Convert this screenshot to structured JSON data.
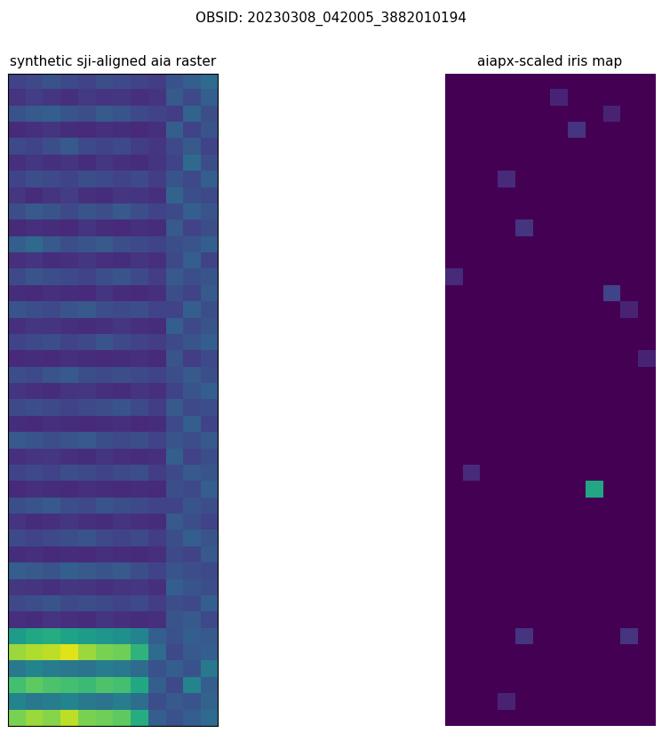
{
  "title": "OBSID: 20230308_042005_3882010194",
  "chart_data": [
    {
      "type": "heatmap",
      "title": "synthetic sji-aligned aia raster",
      "color": "viridis",
      "color_range": [
        0,
        1
      ],
      "tick_labels": false,
      "cells": [
        [
          0.2,
          0.22,
          0.25,
          0.22,
          0.2,
          0.24,
          0.22,
          0.2,
          0.18,
          0.25,
          0.3,
          0.35
        ],
        [
          0.15,
          0.18,
          0.16,
          0.14,
          0.17,
          0.15,
          0.16,
          0.14,
          0.15,
          0.28,
          0.22,
          0.3
        ],
        [
          0.25,
          0.28,
          0.3,
          0.26,
          0.24,
          0.28,
          0.26,
          0.22,
          0.2,
          0.18,
          0.32,
          0.24
        ],
        [
          0.12,
          0.14,
          0.15,
          0.13,
          0.12,
          0.14,
          0.13,
          0.12,
          0.14,
          0.3,
          0.2,
          0.26
        ],
        [
          0.22,
          0.2,
          0.24,
          0.28,
          0.22,
          0.2,
          0.22,
          0.18,
          0.16,
          0.22,
          0.28,
          0.2
        ],
        [
          0.14,
          0.16,
          0.14,
          0.15,
          0.13,
          0.16,
          0.14,
          0.13,
          0.15,
          0.2,
          0.34,
          0.24
        ],
        [
          0.2,
          0.24,
          0.22,
          0.2,
          0.24,
          0.22,
          0.2,
          0.22,
          0.18,
          0.26,
          0.22,
          0.3
        ],
        [
          0.16,
          0.13,
          0.15,
          0.18,
          0.14,
          0.13,
          0.16,
          0.15,
          0.14,
          0.32,
          0.24,
          0.22
        ],
        [
          0.24,
          0.28,
          0.26,
          0.22,
          0.26,
          0.24,
          0.28,
          0.24,
          0.2,
          0.22,
          0.3,
          0.26
        ],
        [
          0.12,
          0.14,
          0.13,
          0.12,
          0.15,
          0.13,
          0.12,
          0.14,
          0.13,
          0.28,
          0.2,
          0.24
        ],
        [
          0.3,
          0.34,
          0.28,
          0.24,
          0.26,
          0.28,
          0.24,
          0.22,
          0.2,
          0.24,
          0.26,
          0.3
        ],
        [
          0.14,
          0.15,
          0.13,
          0.14,
          0.16,
          0.14,
          0.13,
          0.15,
          0.14,
          0.22,
          0.3,
          0.2
        ],
        [
          0.22,
          0.26,
          0.24,
          0.22,
          0.2,
          0.24,
          0.26,
          0.22,
          0.18,
          0.28,
          0.24,
          0.26
        ],
        [
          0.13,
          0.12,
          0.14,
          0.13,
          0.12,
          0.15,
          0.13,
          0.12,
          0.14,
          0.24,
          0.2,
          0.28
        ],
        [
          0.26,
          0.24,
          0.22,
          0.26,
          0.28,
          0.24,
          0.22,
          0.24,
          0.2,
          0.2,
          0.3,
          0.24
        ],
        [
          0.14,
          0.16,
          0.15,
          0.14,
          0.13,
          0.14,
          0.16,
          0.14,
          0.13,
          0.3,
          0.22,
          0.26
        ],
        [
          0.2,
          0.22,
          0.24,
          0.2,
          0.22,
          0.26,
          0.22,
          0.2,
          0.18,
          0.22,
          0.26,
          0.3
        ],
        [
          0.12,
          0.13,
          0.12,
          0.14,
          0.13,
          0.12,
          0.13,
          0.14,
          0.12,
          0.26,
          0.18,
          0.22
        ],
        [
          0.24,
          0.22,
          0.26,
          0.28,
          0.24,
          0.22,
          0.24,
          0.22,
          0.2,
          0.24,
          0.28,
          0.24
        ],
        [
          0.15,
          0.14,
          0.13,
          0.15,
          0.16,
          0.14,
          0.13,
          0.15,
          0.14,
          0.2,
          0.26,
          0.3
        ],
        [
          0.22,
          0.24,
          0.22,
          0.2,
          0.22,
          0.24,
          0.26,
          0.22,
          0.18,
          0.28,
          0.22,
          0.24
        ],
        [
          0.13,
          0.12,
          0.14,
          0.13,
          0.12,
          0.13,
          0.14,
          0.12,
          0.13,
          0.22,
          0.3,
          0.2
        ],
        [
          0.28,
          0.26,
          0.24,
          0.26,
          0.28,
          0.24,
          0.22,
          0.24,
          0.2,
          0.26,
          0.24,
          0.28
        ],
        [
          0.14,
          0.15,
          0.16,
          0.14,
          0.13,
          0.15,
          0.14,
          0.13,
          0.14,
          0.3,
          0.2,
          0.24
        ],
        [
          0.2,
          0.22,
          0.2,
          0.24,
          0.22,
          0.2,
          0.22,
          0.24,
          0.18,
          0.22,
          0.28,
          0.26
        ],
        [
          0.12,
          0.14,
          0.13,
          0.12,
          0.14,
          0.13,
          0.12,
          0.13,
          0.12,
          0.24,
          0.22,
          0.3
        ],
        [
          0.24,
          0.26,
          0.28,
          0.24,
          0.22,
          0.26,
          0.24,
          0.22,
          0.2,
          0.2,
          0.26,
          0.24
        ],
        [
          0.15,
          0.13,
          0.14,
          0.16,
          0.14,
          0.13,
          0.15,
          0.14,
          0.13,
          0.28,
          0.24,
          0.2
        ],
        [
          0.22,
          0.2,
          0.22,
          0.24,
          0.26,
          0.22,
          0.2,
          0.22,
          0.18,
          0.24,
          0.3,
          0.26
        ],
        [
          0.13,
          0.14,
          0.12,
          0.13,
          0.12,
          0.14,
          0.13,
          0.12,
          0.14,
          0.22,
          0.2,
          0.28
        ],
        [
          0.3,
          0.28,
          0.26,
          0.3,
          0.28,
          0.26,
          0.28,
          0.24,
          0.2,
          0.26,
          0.24,
          0.22
        ],
        [
          0.16,
          0.15,
          0.14,
          0.16,
          0.15,
          0.14,
          0.15,
          0.16,
          0.14,
          0.3,
          0.26,
          0.24
        ],
        [
          0.22,
          0.24,
          0.26,
          0.22,
          0.24,
          0.22,
          0.2,
          0.22,
          0.18,
          0.24,
          0.22,
          0.3
        ],
        [
          0.14,
          0.13,
          0.15,
          0.14,
          0.13,
          0.15,
          0.14,
          0.13,
          0.14,
          0.26,
          0.28,
          0.22
        ],
        [
          0.55,
          0.6,
          0.62,
          0.58,
          0.55,
          0.52,
          0.5,
          0.45,
          0.3,
          0.25,
          0.3,
          0.28
        ],
        [
          0.85,
          0.88,
          0.9,
          0.95,
          0.85,
          0.8,
          0.78,
          0.65,
          0.35,
          0.22,
          0.28,
          0.3
        ],
        [
          0.4,
          0.45,
          0.42,
          0.4,
          0.38,
          0.42,
          0.4,
          0.35,
          0.25,
          0.3,
          0.25,
          0.4
        ],
        [
          0.7,
          0.75,
          0.72,
          0.7,
          0.68,
          0.72,
          0.7,
          0.6,
          0.3,
          0.22,
          0.45,
          0.3
        ],
        [
          0.45,
          0.4,
          0.42,
          0.45,
          0.4,
          0.38,
          0.42,
          0.36,
          0.24,
          0.28,
          0.26,
          0.32
        ],
        [
          0.8,
          0.85,
          0.82,
          0.9,
          0.8,
          0.78,
          0.75,
          0.62,
          0.3,
          0.25,
          0.3,
          0.35
        ]
      ]
    },
    {
      "type": "heatmap",
      "title": "aiapx-scaled iris map",
      "color": "viridis",
      "color_range": [
        0,
        1
      ],
      "tick_labels": false,
      "cells": [
        [
          0,
          0,
          0,
          0,
          0,
          0,
          0,
          0,
          0,
          0,
          0,
          0
        ],
        [
          0,
          0,
          0,
          0,
          0,
          0,
          0.1,
          0,
          0,
          0,
          0,
          0
        ],
        [
          0,
          0,
          0,
          0,
          0,
          0,
          0,
          0,
          0,
          0.1,
          0,
          0
        ],
        [
          0,
          0,
          0,
          0,
          0,
          0,
          0,
          0.15,
          0,
          0,
          0,
          0
        ],
        [
          0,
          0,
          0,
          0,
          0,
          0,
          0,
          0,
          0,
          0,
          0,
          0
        ],
        [
          0,
          0,
          0,
          0,
          0,
          0,
          0,
          0,
          0,
          0,
          0,
          0
        ],
        [
          0,
          0,
          0,
          0.12,
          0,
          0,
          0,
          0,
          0,
          0,
          0,
          0
        ],
        [
          0,
          0,
          0,
          0,
          0,
          0,
          0,
          0,
          0,
          0,
          0,
          0
        ],
        [
          0,
          0,
          0,
          0,
          0,
          0,
          0,
          0,
          0,
          0,
          0,
          0
        ],
        [
          0,
          0,
          0,
          0,
          0.15,
          0,
          0,
          0,
          0,
          0,
          0,
          0
        ],
        [
          0,
          0,
          0,
          0,
          0,
          0,
          0,
          0,
          0,
          0,
          0,
          0
        ],
        [
          0,
          0,
          0,
          0,
          0,
          0,
          0,
          0,
          0,
          0,
          0,
          0
        ],
        [
          0.12,
          0,
          0,
          0,
          0,
          0,
          0,
          0,
          0,
          0,
          0,
          0
        ],
        [
          0,
          0,
          0,
          0,
          0,
          0,
          0,
          0,
          0,
          0.2,
          0,
          0
        ],
        [
          0,
          0,
          0,
          0,
          0,
          0,
          0,
          0,
          0,
          0,
          0.1,
          0
        ],
        [
          0,
          0,
          0,
          0,
          0,
          0,
          0,
          0,
          0,
          0,
          0,
          0
        ],
        [
          0,
          0,
          0,
          0,
          0,
          0,
          0,
          0,
          0,
          0,
          0,
          0
        ],
        [
          0,
          0,
          0,
          0,
          0,
          0,
          0,
          0,
          0,
          0,
          0,
          0.1
        ],
        [
          0,
          0,
          0,
          0,
          0,
          0,
          0,
          0,
          0,
          0,
          0,
          0
        ],
        [
          0,
          0,
          0,
          0,
          0,
          0,
          0,
          0,
          0,
          0,
          0,
          0
        ],
        [
          0,
          0,
          0,
          0,
          0,
          0,
          0,
          0,
          0,
          0,
          0,
          0
        ],
        [
          0,
          0,
          0,
          0,
          0,
          0,
          0,
          0,
          0,
          0,
          0,
          0
        ],
        [
          0,
          0,
          0,
          0,
          0,
          0,
          0,
          0,
          0,
          0,
          0,
          0
        ],
        [
          0,
          0,
          0,
          0,
          0,
          0,
          0,
          0,
          0,
          0,
          0,
          0
        ],
        [
          0,
          0.12,
          0,
          0,
          0,
          0,
          0,
          0,
          0,
          0,
          0,
          0
        ],
        [
          0,
          0,
          0,
          0,
          0,
          0,
          0,
          0,
          0.6,
          0,
          0,
          0
        ],
        [
          0,
          0,
          0,
          0,
          0,
          0,
          0,
          0,
          0,
          0,
          0,
          0
        ],
        [
          0,
          0,
          0,
          0,
          0,
          0,
          0,
          0,
          0,
          0,
          0,
          0
        ],
        [
          0,
          0,
          0,
          0,
          0,
          0,
          0,
          0,
          0,
          0,
          0,
          0
        ],
        [
          0,
          0,
          0,
          0,
          0,
          0,
          0,
          0,
          0,
          0,
          0,
          0
        ],
        [
          0,
          0,
          0,
          0,
          0,
          0,
          0,
          0,
          0,
          0,
          0,
          0
        ],
        [
          0,
          0,
          0,
          0,
          0,
          0,
          0,
          0,
          0,
          0,
          0,
          0
        ],
        [
          0,
          0,
          0,
          0,
          0,
          0,
          0,
          0,
          0,
          0,
          0,
          0
        ],
        [
          0,
          0,
          0,
          0,
          0,
          0,
          0,
          0,
          0,
          0,
          0,
          0
        ],
        [
          0,
          0,
          0,
          0,
          0.15,
          0,
          0,
          0,
          0,
          0,
          0.15,
          0
        ],
        [
          0,
          0,
          0,
          0,
          0,
          0,
          0,
          0,
          0,
          0,
          0,
          0
        ],
        [
          0,
          0,
          0,
          0,
          0,
          0,
          0,
          0,
          0,
          0,
          0,
          0
        ],
        [
          0,
          0,
          0,
          0,
          0,
          0,
          0,
          0,
          0,
          0,
          0,
          0
        ],
        [
          0,
          0,
          0,
          0.1,
          0,
          0,
          0,
          0,
          0,
          0,
          0,
          0
        ],
        [
          0,
          0,
          0,
          0,
          0,
          0,
          0,
          0,
          0,
          0,
          0,
          0
        ]
      ]
    }
  ]
}
